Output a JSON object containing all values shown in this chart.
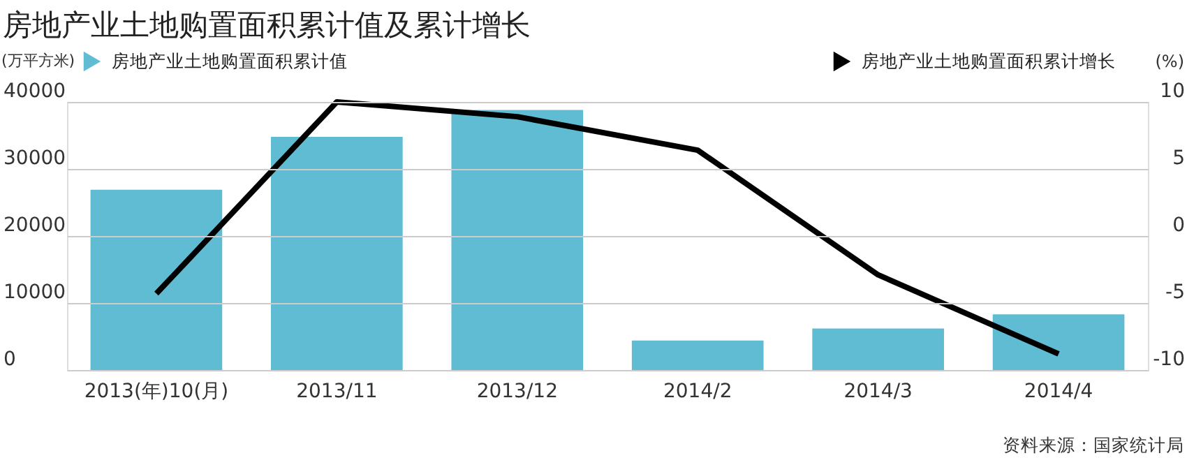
{
  "chart_data": {
    "type": "bar",
    "title": "房地产业土地购置面积累计值及累计增长",
    "ylabel": "(万平方米)",
    "y2label": "(%)",
    "categories": [
      "2013(年)10(月)",
      "2013/11",
      "2013/12",
      "2014/2",
      "2014/3",
      "2014/4"
    ],
    "series": [
      {
        "name": "房地产业土地购置面积累计值",
        "color": "#5fbcd3",
        "values": [
          26900,
          34800,
          38800,
          4400,
          6200,
          8300
        ]
      },
      {
        "name": "房地产业土地购置面积累计增长",
        "type": "line",
        "axis": "y2",
        "color": "#000000",
        "values": [
          -4.3,
          10.0,
          8.9,
          6.4,
          -2.9,
          -8.8
        ]
      }
    ],
    "ylim": [
      0,
      40000
    ],
    "yticks": [
      0,
      10000,
      20000,
      30000,
      40000
    ],
    "y2lim": [
      -10,
      10
    ],
    "y2ticks": [
      -10,
      -5,
      0,
      5,
      10
    ],
    "grid": "y",
    "legend": "top",
    "marker": "none",
    "line_style": "solid",
    "annotations": [
      "资料来源：国家统计局"
    ]
  }
}
